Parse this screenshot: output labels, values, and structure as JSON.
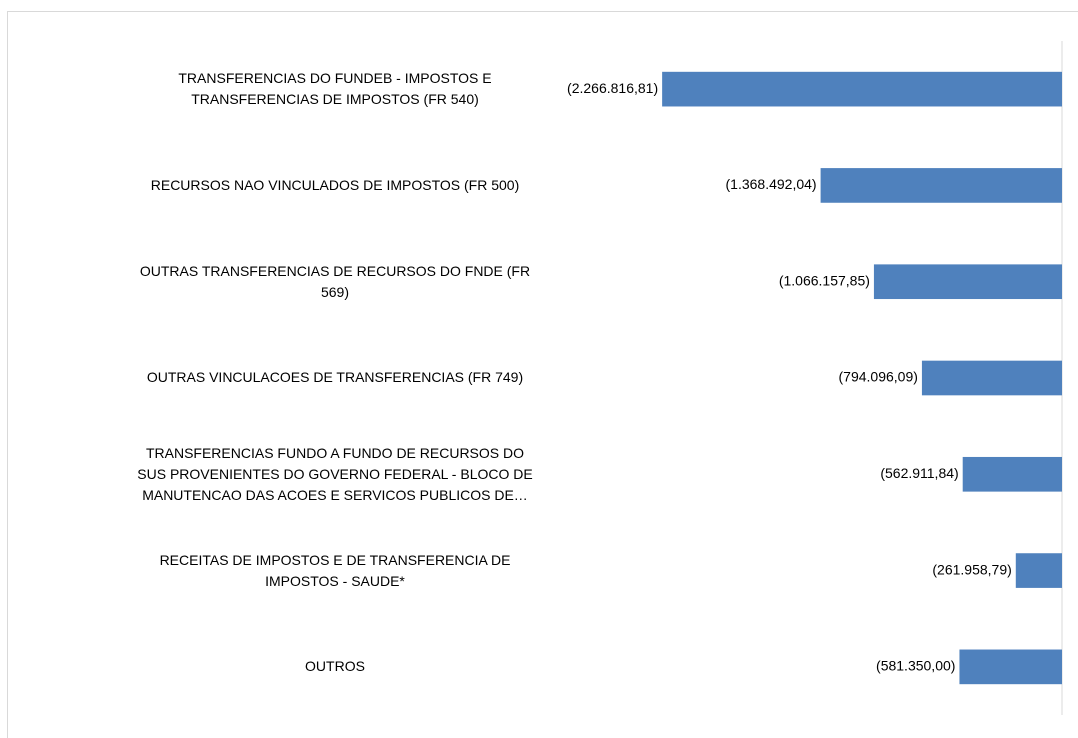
{
  "chart_data": {
    "type": "barh",
    "categories": [
      "TRANSFERENCIAS DO FUNDEB - IMPOSTOS E TRANSFERENCIAS DE IMPOSTOS (FR 540)",
      "RECURSOS NAO VINCULADOS DE IMPOSTOS (FR 500)",
      "OUTRAS TRANSFERENCIAS DE RECURSOS DO FNDE (FR 569)",
      "OUTRAS VINCULACOES DE TRANSFERENCIAS (FR 749)",
      "TRANSFERENCIAS FUNDO A FUNDO DE RECURSOS DO SUS PROVENIENTES DO GOVERNO FEDERAL - BLOCO DE MANUTENCAO DAS ACOES E SERVICOS PUBLICOS DE…",
      "RECEITAS DE IMPOSTOS E DE TRANSFERENCIA DE IMPOSTOS - SAUDE*",
      "OUTROS"
    ],
    "values": [
      -2266816.81,
      -1368492.04,
      -1066157.85,
      -794096.09,
      -562911.84,
      -261958.79,
      -581350.0
    ],
    "value_labels": [
      "(2.266.816,81)",
      "(1.368.492,04)",
      "(1.066.157,85)",
      "(794.096,09)",
      "(562.911,84)",
      "(261.958,79)",
      "(581.350,00)"
    ],
    "color": "#4f81bd",
    "xlim": [
      -2500000,
      0
    ]
  }
}
